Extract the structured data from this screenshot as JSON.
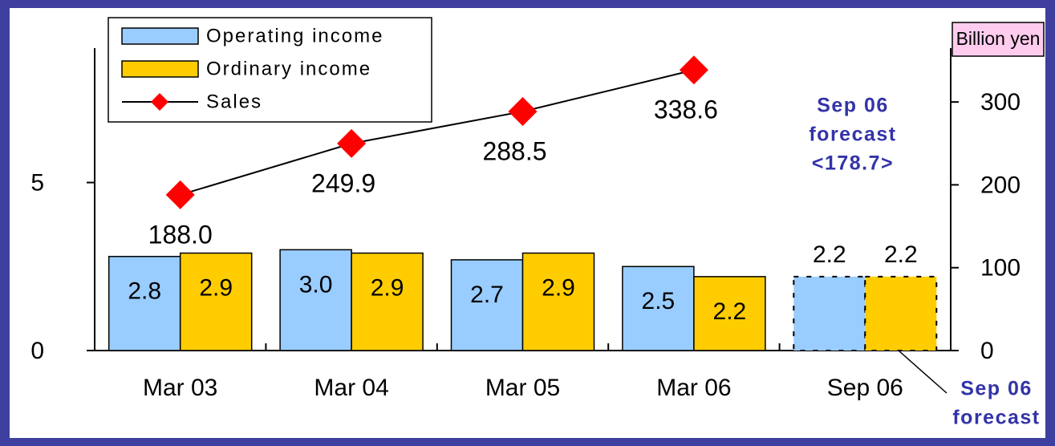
{
  "chart_data": {
    "type": "bar",
    "categories": [
      "Mar 03",
      "Mar 04",
      "Mar 05",
      "Mar 06",
      "Sep 06"
    ],
    "series": [
      {
        "name": "Operating income",
        "type": "bar",
        "color": "#99ccff",
        "values": [
          2.8,
          3.0,
          2.7,
          2.5,
          2.2
        ],
        "value_labels": [
          "2.8",
          "3.0",
          "2.7",
          "2.5",
          "2.2"
        ]
      },
      {
        "name": "Ordinary income",
        "type": "bar",
        "color": "#ffcc00",
        "values": [
          2.9,
          2.9,
          2.9,
          2.2,
          2.2
        ]
      },
      {
        "name": "Sales",
        "type": "line",
        "axis": "y2",
        "color": "#ff0000",
        "values": [
          188.0,
          249.9,
          288.5,
          338.6,
          null
        ],
        "value_labels": [
          "188.0",
          "249.9",
          "288.5",
          "338.6",
          null
        ]
      }
    ],
    "ylim": [
      0,
      9
    ],
    "yticks": [
      0,
      5
    ],
    "y2lim": [
      0,
      365
    ],
    "y2ticks": [
      0,
      100,
      200,
      300
    ],
    "y2_label": "Billion yen",
    "annotations": [
      [
        "Sep 06",
        "forecast",
        "<178.7>"
      ],
      [
        "Sep 06",
        "forecast"
      ]
    ],
    "legend": "top-left"
  }
}
